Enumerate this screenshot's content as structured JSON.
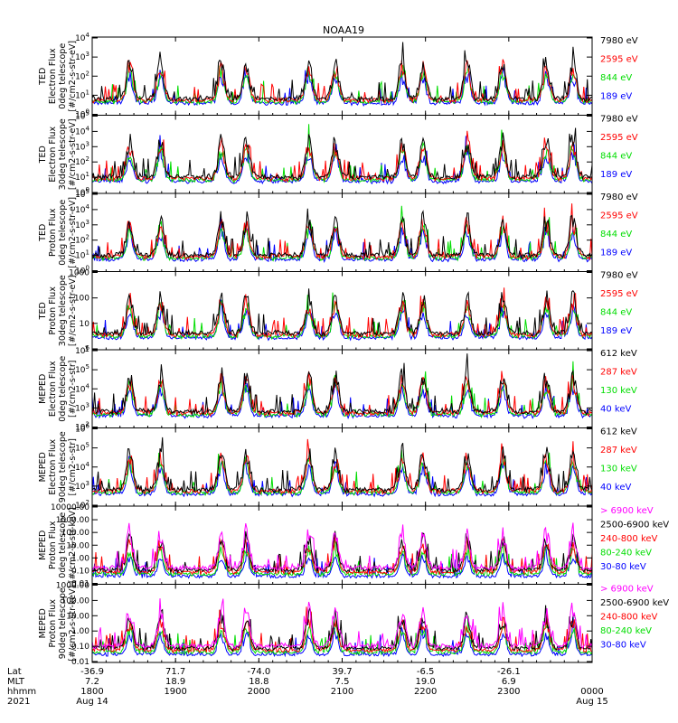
{
  "chart_data": {
    "type": "line",
    "title": "NOAA19",
    "panels": [
      {
        "ylabel": [
          "TED",
          "Electron Flux",
          "0deg telescope",
          "[#/cm2-s-str-eV]"
        ],
        "yscale": "log",
        "ylim": [
          1,
          10000
        ],
        "yticks": [
          "10^0",
          "10^1",
          "10^2",
          "10^3",
          "10^4"
        ],
        "legend": [
          {
            "name": "7980 eV",
            "color": "#000000"
          },
          {
            "name": "2595 eV",
            "color": "#ff0000"
          },
          {
            "name": "844 eV",
            "color": "#00dd00"
          },
          {
            "name": "189 eV",
            "color": "#0000ff"
          }
        ]
      },
      {
        "ylabel": [
          "TED",
          "Electron Flux",
          "30deg telescope",
          "[#/cm2-s-str-eV]"
        ],
        "yscale": "log",
        "ylim": [
          1,
          100000
        ],
        "yticks": [
          "10^0",
          "10^1",
          "10^2",
          "10^3",
          "10^4",
          "10^5"
        ],
        "legend": [
          {
            "name": "7980 eV",
            "color": "#000000"
          },
          {
            "name": "2595 eV",
            "color": "#ff0000"
          },
          {
            "name": "844 eV",
            "color": "#00dd00"
          },
          {
            "name": "189 eV",
            "color": "#0000ff"
          }
        ]
      },
      {
        "ylabel": [
          "TED",
          "Proton Flux",
          "0deg telescope",
          "[#/cm2-s-str-eV]"
        ],
        "yscale": "log",
        "ylim": [
          1,
          100000
        ],
        "yticks": [
          "10^0",
          "10^1",
          "10^2",
          "10^3",
          "10^4",
          "10^5"
        ],
        "legend": [
          {
            "name": "7980 eV",
            "color": "#000000"
          },
          {
            "name": "2595 eV",
            "color": "#ff0000"
          },
          {
            "name": "844 eV",
            "color": "#00dd00"
          },
          {
            "name": "189 eV",
            "color": "#0000ff"
          }
        ]
      },
      {
        "ylabel": [
          "TED",
          "Proton Flux",
          "30deg telescope",
          "[#/cm2-s-str-eV]"
        ],
        "yscale": "log",
        "ylim": [
          1,
          1000
        ],
        "yticks": [
          "1",
          "10",
          "100",
          "1000"
        ],
        "legend": [
          {
            "name": "7980 eV",
            "color": "#000000"
          },
          {
            "name": "2595 eV",
            "color": "#ff0000"
          },
          {
            "name": "844 eV",
            "color": "#00dd00"
          },
          {
            "name": "189 eV",
            "color": "#0000ff"
          }
        ]
      },
      {
        "ylabel": [
          "MEPED",
          "Electron Flux",
          "0deg telescope",
          "[#/cm2-s-str]"
        ],
        "yscale": "log",
        "ylim": [
          100,
          10000000
        ],
        "yticks": [
          "10^2",
          "10^3",
          "10^4",
          "10^5",
          "10^6"
        ],
        "legend": [
          {
            "name": "612 keV",
            "color": "#000000"
          },
          {
            "name": "287 keV",
            "color": "#ff0000"
          },
          {
            "name": "130 keV",
            "color": "#00dd00"
          },
          {
            "name": "40 keV",
            "color": "#0000ff"
          }
        ]
      },
      {
        "ylabel": [
          "MEPED",
          "Electron Flux",
          "90deg telescope",
          "[#/cm2-s-str]"
        ],
        "yscale": "log",
        "ylim": [
          100,
          1000000
        ],
        "yticks": [
          "10^2",
          "10^3",
          "10^4",
          "10^5",
          "10^6"
        ],
        "legend": [
          {
            "name": "612 keV",
            "color": "#000000"
          },
          {
            "name": "287 keV",
            "color": "#ff0000"
          },
          {
            "name": "130 keV",
            "color": "#00dd00"
          },
          {
            "name": "40 keV",
            "color": "#0000ff"
          }
        ]
      },
      {
        "ylabel": [
          "MEPED",
          "Proton Flux",
          "0deg telescope",
          "[#/cm2-s-str-keV]"
        ],
        "yscale": "log",
        "ylim": [
          0.01,
          10000
        ],
        "yticks": [
          "0.01",
          "0.10",
          "1.00",
          "10.00",
          "100.00",
          "1000.00",
          "10000.00"
        ],
        "legend": [
          {
            "name": "> 6900 keV",
            "color": "#ff00ff"
          },
          {
            "name": "2500-6900 keV",
            "color": "#000000"
          },
          {
            "name": "240-800 keV",
            "color": "#ff0000"
          },
          {
            "name": "80-240 keV",
            "color": "#00dd00"
          },
          {
            "name": "30-80 keV",
            "color": "#0000ff"
          }
        ]
      },
      {
        "ylabel": [
          "MEPED",
          "Proton Flux",
          "90deg telescope",
          "[#/cm2-s-str-keV]"
        ],
        "yscale": "log",
        "ylim": [
          0.01,
          1000
        ],
        "yticks": [
          "0.01",
          "0.10",
          "1.00",
          "10.00",
          "100.00",
          "1000.00"
        ],
        "legend": [
          {
            "name": "> 6900 keV",
            "color": "#ff00ff"
          },
          {
            "name": "2500-6900 keV",
            "color": "#000000"
          },
          {
            "name": "240-800 keV",
            "color": "#ff0000"
          },
          {
            "name": "80-240 keV",
            "color": "#00dd00"
          },
          {
            "name": "30-80 keV",
            "color": "#0000ff"
          }
        ]
      }
    ],
    "x_axis": {
      "row_labels": [
        "Lat",
        "MLT",
        "hhmm",
        "2021"
      ],
      "start_hour": 18,
      "end_hour": 24,
      "ticks": [
        {
          "hour": 18,
          "lat": "-36.9",
          "mlt": "7.2",
          "hhmm": "1800",
          "date": "Aug 14"
        },
        {
          "hour": 19,
          "lat": "71.7",
          "mlt": "18.9",
          "hhmm": "1900",
          "date": ""
        },
        {
          "hour": 20,
          "lat": "-74.0",
          "mlt": "18.8",
          "hhmm": "2000",
          "date": ""
        },
        {
          "hour": 21,
          "lat": "39.7",
          "mlt": "7.5",
          "hhmm": "2100",
          "date": ""
        },
        {
          "hour": 22,
          "lat": "-6.5",
          "mlt": "19.0",
          "hhmm": "2200",
          "date": ""
        },
        {
          "hour": 23,
          "lat": "-26.1",
          "mlt": "6.9",
          "hhmm": "2300",
          "date": ""
        },
        {
          "hour": 24,
          "lat": "",
          "mlt": "",
          "hhmm": "0000",
          "date": "Aug 15"
        }
      ]
    },
    "passes_hours": [
      18.45,
      18.82,
      19.55,
      19.85,
      20.6,
      20.92,
      21.72,
      21.97,
      22.5,
      22.93,
      23.45,
      23.77
    ]
  }
}
